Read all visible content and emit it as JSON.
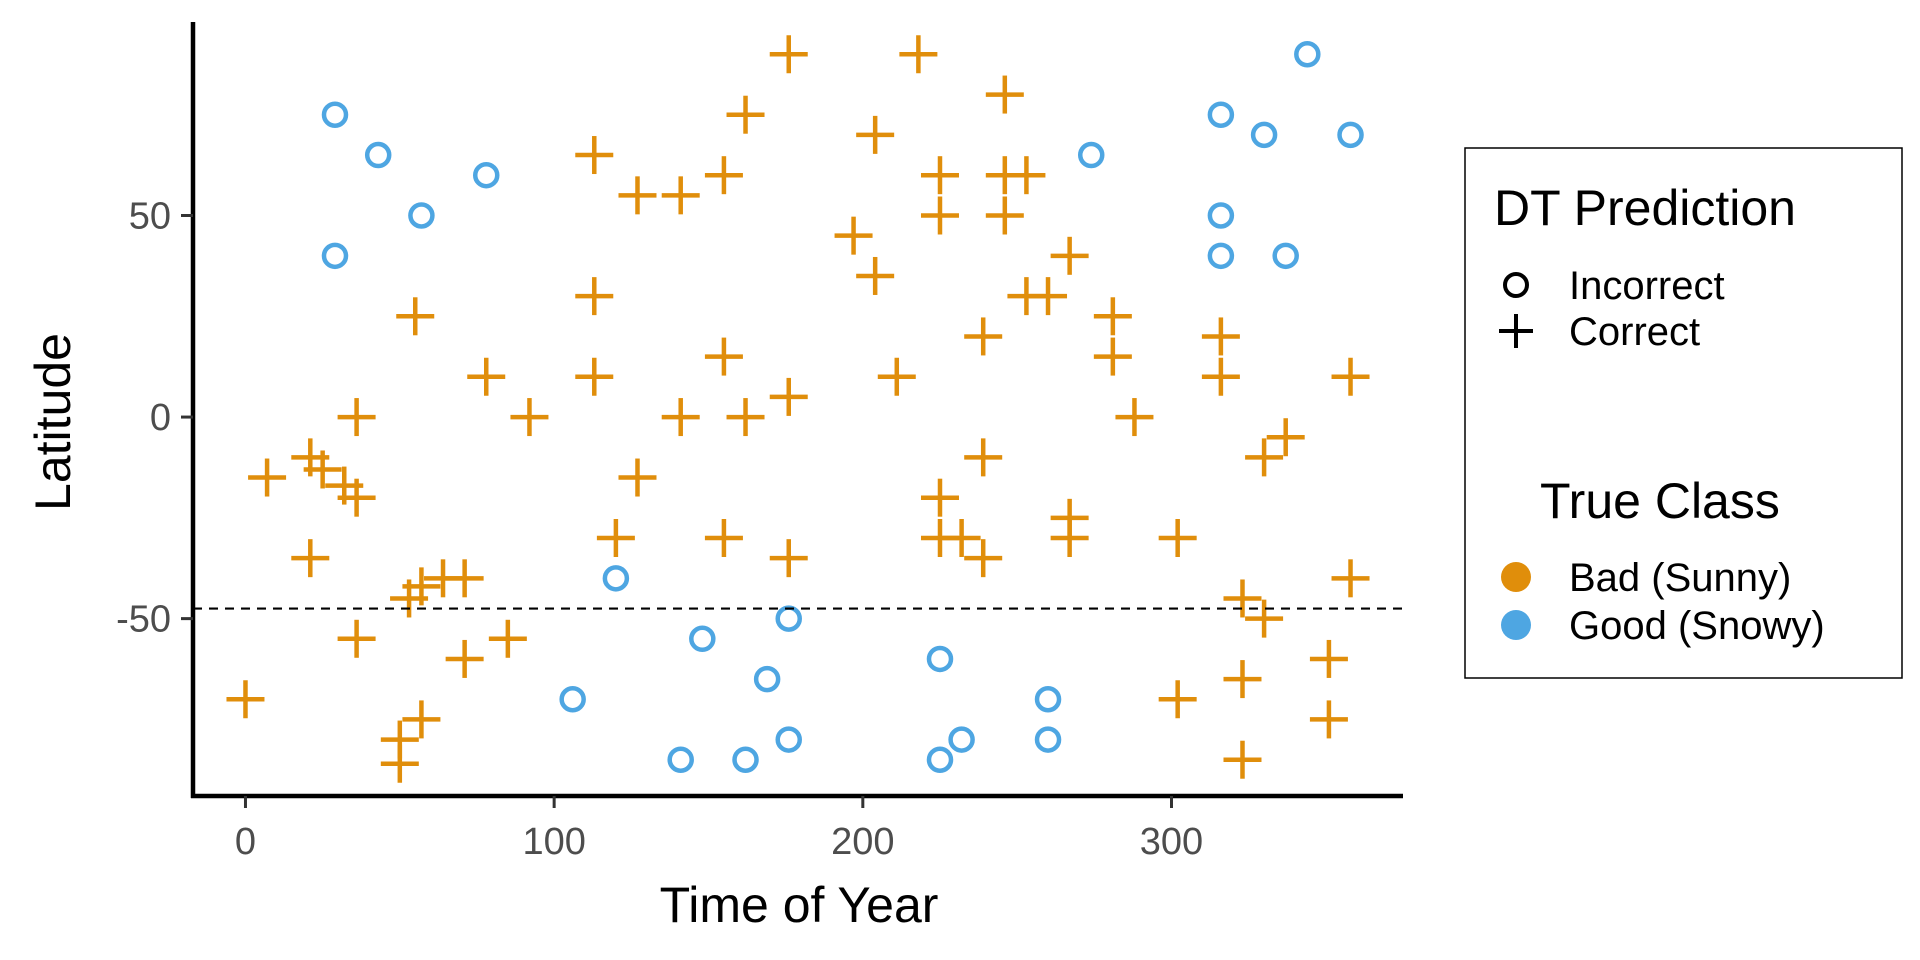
{
  "chart_data": {
    "type": "scatter",
    "xlabel": "Time of Year",
    "ylabel": "Latitude",
    "xlim": [
      -17,
      375
    ],
    "ylim": [
      -94,
      98
    ],
    "xticks": [
      0,
      100,
      200,
      300
    ],
    "xtick_labels": [
      "0",
      "100",
      "200",
      "300"
    ],
    "yticks": [
      -50,
      0,
      50
    ],
    "ytick_labels": [
      "-50",
      "0",
      "50"
    ],
    "grid": false,
    "threshold_line": {
      "y": -47.5,
      "style": "dashed"
    },
    "legend_shape": {
      "title": "DT Prediction",
      "entries": [
        {
          "label": "Incorrect",
          "marker": "circle-open"
        },
        {
          "label": "Correct",
          "marker": "plus"
        }
      ]
    },
    "legend_color": {
      "title": "True Class",
      "entries": [
        {
          "label": "Bad (Sunny)",
          "color": "#E08E0B"
        },
        {
          "label": "Good (Snowy)",
          "color": "#4EA6E2"
        }
      ]
    },
    "colors": {
      "bad": "#E08E0B",
      "good": "#4EA6E2"
    },
    "series": [
      {
        "name": "Bad (Sunny)",
        "marker": "plus",
        "points": [
          [
            0,
            -70
          ],
          [
            7,
            -15
          ],
          [
            21,
            -10
          ],
          [
            21,
            -35
          ],
          [
            25,
            -13
          ],
          [
            32,
            -17
          ],
          [
            36,
            0
          ],
          [
            36,
            -20
          ],
          [
            36,
            -55
          ],
          [
            50,
            -80
          ],
          [
            50,
            -86
          ],
          [
            53,
            -45
          ],
          [
            55,
            25
          ],
          [
            57,
            -75
          ],
          [
            57,
            -42
          ],
          [
            64,
            -40
          ],
          [
            71,
            -40
          ],
          [
            71,
            -60
          ],
          [
            78,
            10
          ],
          [
            85,
            -55
          ],
          [
            92,
            0
          ],
          [
            113,
            65
          ],
          [
            113,
            30
          ],
          [
            113,
            10
          ],
          [
            120,
            -30
          ],
          [
            127,
            -15
          ],
          [
            127,
            55
          ],
          [
            141,
            55
          ],
          [
            141,
            0
          ],
          [
            155,
            60
          ],
          [
            155,
            15
          ],
          [
            155,
            -30
          ],
          [
            162,
            75
          ],
          [
            162,
            0
          ],
          [
            176,
            90
          ],
          [
            176,
            5
          ],
          [
            176,
            -35
          ],
          [
            197,
            45
          ],
          [
            204,
            70
          ],
          [
            204,
            35
          ],
          [
            211,
            10
          ],
          [
            218,
            90
          ],
          [
            225,
            60
          ],
          [
            225,
            50
          ],
          [
            225,
            -20
          ],
          [
            225,
            -30
          ],
          [
            232,
            -30
          ],
          [
            239,
            20
          ],
          [
            239,
            -10
          ],
          [
            239,
            -35
          ],
          [
            246,
            80
          ],
          [
            246,
            60
          ],
          [
            246,
            50
          ],
          [
            253,
            60
          ],
          [
            253,
            30
          ],
          [
            260,
            30
          ],
          [
            267,
            40
          ],
          [
            267,
            -25
          ],
          [
            267,
            -30
          ],
          [
            281,
            25
          ],
          [
            281,
            15
          ],
          [
            288,
            0
          ],
          [
            302,
            -30
          ],
          [
            302,
            -70
          ],
          [
            316,
            20
          ],
          [
            316,
            10
          ],
          [
            323,
            -45
          ],
          [
            323,
            -65
          ],
          [
            323,
            -85
          ],
          [
            330,
            -10
          ],
          [
            330,
            -50
          ],
          [
            337,
            -5
          ],
          [
            351,
            -60
          ],
          [
            351,
            -75
          ],
          [
            358,
            10
          ],
          [
            358,
            -40
          ]
        ]
      },
      {
        "name": "Good (Snowy)",
        "marker": "circle-open",
        "points": [
          [
            29,
            75
          ],
          [
            29,
            40
          ],
          [
            43,
            65
          ],
          [
            57,
            50
          ],
          [
            78,
            60
          ],
          [
            106,
            -70
          ],
          [
            120,
            -40
          ],
          [
            141,
            -85
          ],
          [
            148,
            -55
          ],
          [
            162,
            -85
          ],
          [
            169,
            -65
          ],
          [
            176,
            -50
          ],
          [
            176,
            -80
          ],
          [
            225,
            -60
          ],
          [
            225,
            -85
          ],
          [
            232,
            -80
          ],
          [
            260,
            -70
          ],
          [
            260,
            -80
          ],
          [
            274,
            65
          ],
          [
            316,
            75
          ],
          [
            316,
            50
          ],
          [
            316,
            40
          ],
          [
            330,
            70
          ],
          [
            337,
            40
          ],
          [
            344,
            90
          ],
          [
            358,
            70
          ]
        ]
      }
    ]
  }
}
